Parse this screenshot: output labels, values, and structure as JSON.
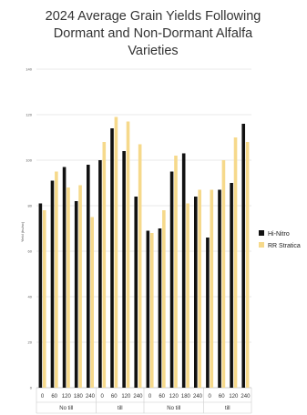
{
  "chart_data": {
    "type": "bar",
    "title_lines": [
      "2024 Average Grain Yields Following",
      "Dormant and Non-Dormant Alfalfa",
      "Varieties"
    ],
    "ylabel": "Yield (bu/ac)",
    "ylim": [
      0,
      140
    ],
    "yticks": [
      "0",
      "20",
      "40",
      "60",
      "80",
      "100",
      "120",
      "140"
    ],
    "ytick_values": [
      0,
      20,
      40,
      60,
      80,
      100,
      120,
      140
    ],
    "categories": [
      "0",
      "60",
      "120",
      "180",
      "240",
      "0",
      "60",
      "120",
      "240",
      "0",
      "60",
      "120",
      "180",
      "240",
      "0",
      "60",
      "120",
      "240"
    ],
    "group_labels": [
      {
        "label": "No till",
        "from": 0,
        "to": 4
      },
      {
        "label": "till",
        "from": 5,
        "to": 8
      },
      {
        "label": "No till",
        "from": 9,
        "to": 13
      },
      {
        "label": "till",
        "from": 14,
        "to": 17
      }
    ],
    "series": [
      {
        "name": "Hi-Nitro",
        "color": "#111111",
        "values": [
          81,
          91,
          97,
          82,
          98,
          100,
          114,
          104,
          84,
          69,
          70,
          95,
          103,
          84,
          66,
          87,
          90,
          116
        ]
      },
      {
        "name": "RR Stratica",
        "color": "#f6d98b",
        "values": [
          78,
          95,
          88,
          89,
          75,
          108,
          119,
          117,
          107,
          68,
          78,
          102,
          81,
          87,
          87,
          100,
          110,
          108
        ]
      }
    ],
    "legend_position": "right",
    "grid": true
  }
}
